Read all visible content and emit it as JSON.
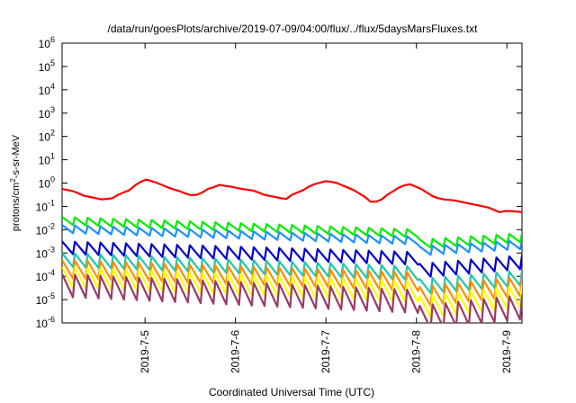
{
  "chart_data": {
    "type": "line",
    "title": "/data/run/goesPlots/archive/2019-07-09/04:00/flux/../flux/5daysMarsFluxes.txt",
    "xlabel": "Coordinated Universal Time (UTC)",
    "ylabel": "protons/cm2-s-sr-MeV",
    "ylabel_parts": {
      "pre": "protons/cm",
      "sup": "2",
      "post": "-s-sr-MeV"
    },
    "y_scale": "log",
    "ylim_exp": [
      -6,
      6
    ],
    "y_ticks": [
      {
        "base": "10",
        "exp": "-6"
      },
      {
        "base": "10",
        "exp": "-5"
      },
      {
        "base": "10",
        "exp": "-4"
      },
      {
        "base": "10",
        "exp": "-3"
      },
      {
        "base": "10",
        "exp": "-2"
      },
      {
        "base": "10",
        "exp": "-1"
      },
      {
        "base": "10",
        "exp": "0"
      },
      {
        "base": "10",
        "exp": "1"
      },
      {
        "base": "10",
        "exp": "2"
      },
      {
        "base": "10",
        "exp": "3"
      },
      {
        "base": "10",
        "exp": "4"
      },
      {
        "base": "10",
        "exp": "5"
      },
      {
        "base": "10",
        "exp": "6"
      }
    ],
    "x_range": [
      "2019-07-04 02:00",
      "2019-07-09 04:00"
    ],
    "x_ticks": [
      {
        "label": "2019-7-5",
        "t": "2019-07-05 00:00"
      },
      {
        "label": "2019-7-6",
        "t": "2019-07-06 00:00"
      },
      {
        "label": "2019-7-7",
        "t": "2019-07-07 00:00"
      },
      {
        "label": "2019-7-8",
        "t": "2019-07-08 00:00"
      },
      {
        "label": "2019-7-9",
        "t": "2019-07-09 00:00"
      }
    ],
    "grid": false,
    "legend": "none",
    "series": [
      {
        "color": "#ff0000",
        "kind": "smooth",
        "log10": [
          [
            0.0,
            -0.25
          ],
          [
            0.05,
            -0.3
          ],
          [
            0.1,
            -0.35
          ],
          [
            0.15,
            -0.45
          ],
          [
            0.2,
            -0.55
          ],
          [
            0.25,
            -0.6
          ],
          [
            0.3,
            -0.65
          ],
          [
            0.35,
            -0.7
          ],
          [
            0.4,
            -0.68
          ],
          [
            0.45,
            -0.65
          ],
          [
            0.5,
            -0.5
          ],
          [
            0.55,
            -0.4
          ],
          [
            0.6,
            -0.3
          ],
          [
            0.65,
            -0.1
          ],
          [
            0.7,
            0.05
          ],
          [
            0.75,
            0.15
          ],
          [
            0.8,
            0.08
          ],
          [
            0.85,
            0.0
          ],
          [
            0.9,
            -0.1
          ],
          [
            0.95,
            -0.2
          ],
          [
            1.0,
            -0.28
          ],
          [
            1.05,
            -0.35
          ],
          [
            1.1,
            -0.45
          ],
          [
            1.15,
            -0.52
          ],
          [
            1.2,
            -0.5
          ],
          [
            1.25,
            -0.4
          ],
          [
            1.3,
            -0.25
          ],
          [
            1.35,
            -0.18
          ],
          [
            1.4,
            -0.08
          ],
          [
            1.45,
            -0.12
          ],
          [
            1.5,
            -0.15
          ],
          [
            1.55,
            -0.2
          ],
          [
            1.6,
            -0.25
          ],
          [
            1.65,
            -0.28
          ],
          [
            1.7,
            -0.32
          ],
          [
            1.75,
            -0.4
          ],
          [
            1.8,
            -0.5
          ],
          [
            1.85,
            -0.55
          ],
          [
            1.9,
            -0.6
          ],
          [
            1.95,
            -0.65
          ],
          [
            2.0,
            -0.68
          ],
          [
            2.05,
            -0.5
          ],
          [
            2.1,
            -0.4
          ],
          [
            2.15,
            -0.3
          ],
          [
            2.2,
            -0.15
          ],
          [
            2.25,
            -0.05
          ],
          [
            2.3,
            0.02
          ],
          [
            2.35,
            0.08
          ],
          [
            2.4,
            0.05
          ],
          [
            2.45,
            0.0
          ],
          [
            2.5,
            -0.1
          ],
          [
            2.55,
            -0.2
          ],
          [
            2.6,
            -0.3
          ],
          [
            2.65,
            -0.45
          ],
          [
            2.7,
            -0.6
          ],
          [
            2.75,
            -0.8
          ],
          [
            2.8,
            -0.8
          ],
          [
            2.85,
            -0.7
          ],
          [
            2.9,
            -0.5
          ],
          [
            2.95,
            -0.35
          ],
          [
            3.0,
            -0.2
          ],
          [
            3.05,
            -0.1
          ],
          [
            3.1,
            -0.05
          ],
          [
            3.15,
            -0.15
          ],
          [
            3.2,
            -0.25
          ],
          [
            3.25,
            -0.4
          ],
          [
            3.3,
            -0.55
          ],
          [
            3.35,
            -0.65
          ],
          [
            3.4,
            -0.7
          ],
          [
            3.45,
            -0.72
          ],
          [
            3.5,
            -0.75
          ],
          [
            3.55,
            -0.8
          ],
          [
            3.6,
            -0.85
          ],
          [
            3.65,
            -0.9
          ],
          [
            3.7,
            -0.95
          ],
          [
            3.75,
            -1.0
          ],
          [
            3.8,
            -1.05
          ],
          [
            3.85,
            -1.15
          ],
          [
            3.9,
            -1.25
          ],
          [
            3.95,
            -1.2
          ],
          [
            4.0,
            -1.2
          ],
          [
            4.05,
            -1.22
          ],
          [
            4.1,
            -1.25
          ]
        ]
      },
      {
        "color": "#00ee00",
        "kind": "saw",
        "start": -1.45,
        "end": -2.15,
        "end_before_drop": -2.45,
        "amp": 0.35
      },
      {
        "color": "#1e90ff",
        "kind": "saw",
        "start": -1.8,
        "end": -2.45,
        "end_before_drop": -2.75,
        "amp": 0.35
      },
      {
        "color": "#0000cd",
        "kind": "saw",
        "start": -2.5,
        "end": -3.1,
        "end_before_drop": -3.5,
        "amp": 0.55
      },
      {
        "color": "#20c8a8",
        "kind": "saw",
        "start": -3.0,
        "end": -3.75,
        "end_before_drop": -4.15,
        "amp": 0.6
      },
      {
        "color": "#ff8c00",
        "kind": "saw",
        "start": -3.3,
        "end": -4.0,
        "end_before_drop": -4.5,
        "amp": 0.8
      },
      {
        "color": "#ffff00",
        "kind": "saw",
        "start": -3.6,
        "end": -4.4,
        "end_before_drop": -4.9,
        "amp": 0.9
      },
      {
        "color": "#9a3a6a",
        "kind": "saw",
        "start": -3.9,
        "end": -4.8,
        "end_before_drop": -5.3,
        "amp": 1.0
      }
    ]
  }
}
